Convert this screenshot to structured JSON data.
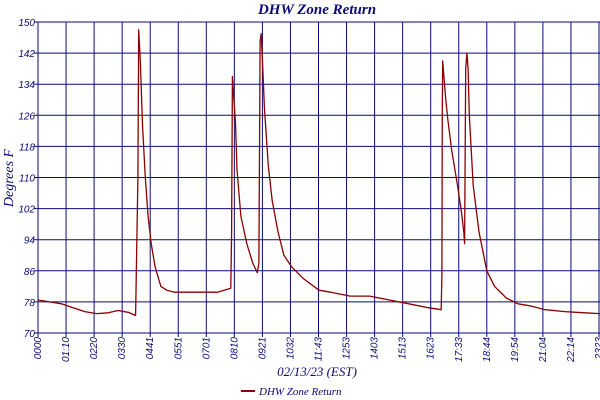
{
  "chart_data": {
    "type": "line",
    "title": "DHW Zone Return",
    "xlabel": "02/13/23 (EST)",
    "ylabel": "Degrees F",
    "ylim": [
      70,
      150
    ],
    "yticks": [
      "70",
      "78",
      "86",
      "94",
      "102",
      "110",
      "118",
      "126",
      "134",
      "142",
      "150"
    ],
    "xlim_minutes": [
      0,
      1440
    ],
    "xticks": [
      "0000",
      "01:10",
      "0220",
      "0330",
      "0441",
      "0551",
      "0701",
      "0810",
      "0921",
      "1032",
      "11:43",
      "1253",
      "1403",
      "1513",
      "1623",
      "17:33",
      "18:44",
      "19:54",
      "21:04",
      "22:14",
      "2323"
    ],
    "grid": true,
    "legend_position": "bottom",
    "colors": {
      "series": "#8b0000",
      "grid": "#0a0a78",
      "text": "#0a0a78"
    },
    "series": [
      {
        "name": "DHW Zone Return",
        "x_minutes": [
          0,
          30,
          60,
          90,
          120,
          150,
          180,
          205,
          232,
          250,
          256,
          258,
          262,
          268,
          275,
          282,
          290,
          300,
          315,
          330,
          350,
          380,
          410,
          445,
          460,
          494,
          496,
          498,
          502,
          506,
          510,
          520,
          535,
          550,
          562,
          566,
          569,
          572,
          576,
          580,
          590,
          600,
          615,
          630,
          650,
          680,
          720,
          750,
          800,
          850,
          900,
          950,
          1000,
          1033,
          1035,
          1036,
          1037,
          1040,
          1045,
          1050,
          1060,
          1075,
          1085,
          1091,
          1093,
          1096,
          1099,
          1102,
          1105,
          1115,
          1130,
          1150,
          1170,
          1200,
          1230,
          1260,
          1300,
          1350,
          1400,
          1440
        ],
        "y": [
          78.5,
          78,
          77.5,
          76.5,
          75.5,
          75,
          75.2,
          75.8,
          75.3,
          74.5,
          110,
          148,
          140,
          123,
          110,
          100,
          93,
          87,
          82,
          81,
          80.5,
          80.5,
          80.5,
          80.5,
          80.5,
          81.5,
          96,
          136,
          130,
          124,
          112,
          100,
          93,
          88,
          85.5,
          88,
          145,
          147,
          138,
          128,
          113,
          104,
          96,
          90,
          87,
          84,
          81,
          80.5,
          79.5,
          79.5,
          78.5,
          77.5,
          76.5,
          76,
          85,
          128,
          140,
          136,
          130,
          125,
          117,
          108,
          101,
          96,
          93,
          138,
          142,
          138,
          126,
          108,
          96,
          86,
          82,
          79,
          77.5,
          77,
          76,
          75.5,
          75.2,
          75
        ]
      }
    ]
  }
}
